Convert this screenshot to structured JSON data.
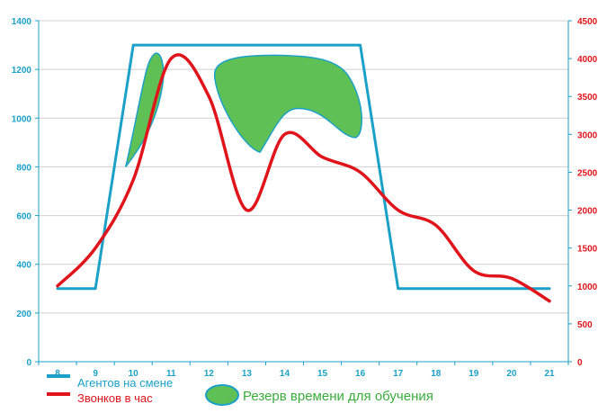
{
  "chart_data": {
    "type": "line",
    "categories": [
      "8",
      "9",
      "10",
      "11",
      "12",
      "13",
      "14",
      "15",
      "16",
      "17",
      "18",
      "19",
      "20",
      "21"
    ],
    "y_left": {
      "ticks": [
        "0",
        "200",
        "400",
        "600",
        "800",
        "1000",
        "1200",
        "1400"
      ],
      "range": [
        0,
        1400
      ]
    },
    "y_right": {
      "ticks": [
        "0",
        "500",
        "1000",
        "1500",
        "2000",
        "2500",
        "3000",
        "3500",
        "4000",
        "4500"
      ],
      "range": [
        0,
        4500
      ]
    },
    "grid": true,
    "series": [
      {
        "name": "Агентов на смене",
        "axis": "left",
        "color": "#1ba1c8",
        "points": [
          [
            8,
            300
          ],
          [
            9,
            300
          ],
          [
            10,
            1300
          ],
          [
            16,
            1300
          ],
          [
            17,
            300
          ],
          [
            21,
            300
          ]
        ]
      },
      {
        "name": "Звонков в час",
        "axis": "right",
        "color": "#e0141b",
        "points": [
          [
            8,
            1000
          ],
          [
            9,
            1500
          ],
          [
            10,
            2400
          ],
          [
            11,
            4000
          ],
          [
            12,
            3500
          ],
          [
            13,
            2000
          ],
          [
            14,
            3000
          ],
          [
            15,
            2700
          ],
          [
            16,
            2500
          ],
          [
            17,
            2000
          ],
          [
            18,
            1800
          ],
          [
            19,
            1200
          ],
          [
            20,
            1100
          ],
          [
            21,
            800
          ]
        ]
      }
    ],
    "reserve": {
      "name": "Резерв времени для обучения",
      "color": "#5fc155",
      "border": "#1ba1c8"
    },
    "legend": {
      "agents": "Агентов на смене",
      "calls": "Звонков в час",
      "reserve": "Резерв времени для обучения"
    },
    "legend_position": "bottom-left"
  }
}
